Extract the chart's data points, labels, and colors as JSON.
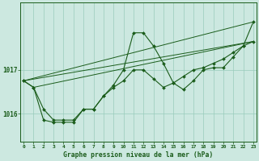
{
  "x": [
    0,
    1,
    2,
    3,
    4,
    5,
    6,
    7,
    8,
    9,
    10,
    11,
    12,
    13,
    14,
    15,
    16,
    17,
    18,
    19,
    20,
    21,
    22,
    23
  ],
  "line_detail": [
    1016.75,
    1016.6,
    1015.85,
    1015.8,
    1015.8,
    1015.8,
    1016.1,
    1016.1,
    1016.4,
    1016.65,
    1017.0,
    1017.85,
    1017.85,
    1017.55,
    1017.15,
    1016.7,
    1016.55,
    1016.75,
    1017.0,
    1017.05,
    1017.05,
    1017.3,
    1017.55,
    1018.1
  ],
  "line_smooth": [
    1016.75,
    1016.6,
    1016.1,
    1015.85,
    1015.85,
    1015.85,
    1016.1,
    1016.1,
    1016.4,
    1016.6,
    1016.75,
    1017.0,
    1017.0,
    1016.8,
    1016.6,
    1016.7,
    1016.85,
    1017.0,
    1017.05,
    1017.15,
    1017.25,
    1017.4,
    1017.55,
    1017.65
  ],
  "trend1_x": [
    0,
    23
  ],
  "trend1_y": [
    1016.75,
    1018.1
  ],
  "trend2_x": [
    0,
    23
  ],
  "trend2_y": [
    1016.75,
    1017.65
  ],
  "trend3_x": [
    1,
    23
  ],
  "trend3_y": [
    1016.6,
    1017.65
  ],
  "bg_color": "#cce8e0",
  "line_color": "#1a5c1a",
  "grid_color": "#99ccbb",
  "xlabel": "Graphe pression niveau de la mer (hPa)",
  "ytick_vals": [
    1016,
    1017
  ],
  "ytick_labels": [
    "1016",
    "1017"
  ],
  "ylim": [
    1015.35,
    1018.55
  ],
  "xlim": [
    -0.3,
    23.3
  ],
  "xtick_labels": [
    "0",
    "1",
    "2",
    "3",
    "4",
    "5",
    "6",
    "7",
    "8",
    "9",
    "10",
    "11",
    "12",
    "13",
    "14",
    "15",
    "16",
    "17",
    "18",
    "19",
    "20",
    "21",
    "22",
    "23"
  ]
}
